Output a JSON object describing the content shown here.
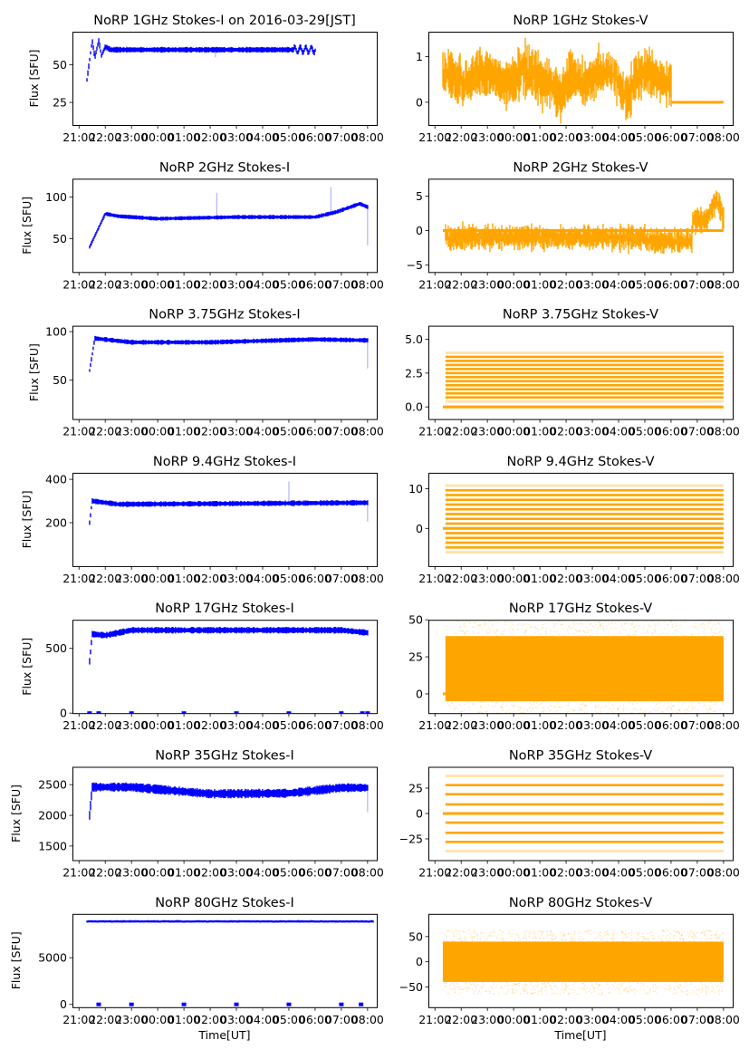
{
  "figure": {
    "colors": {
      "stokes_i": "#0000ff",
      "stokes_v": "#ffa500",
      "axes": "#000000"
    },
    "x_tick_labels": [
      "21:00",
      "22:00",
      "23:00",
      "00:00",
      "01:00",
      "02:00",
      "03:00",
      "04:00",
      "05:00",
      "06:00",
      "07:00",
      "08:00"
    ],
    "xlabel": "Time[UT]",
    "ylabel_left": "Flux [SFU]"
  },
  "chart_data": [
    {
      "type": "scatter",
      "panel": "left",
      "row": 0,
      "title": "NoRP 1GHz Stokes-I on 2016-03-29[JST]",
      "ylabel": "Flux [SFU]",
      "xlabel": "",
      "xlim": [
        -0.25,
        11.35
      ],
      "x_unit": "hours since 21:00 UT",
      "ylim": [
        10,
        72
      ],
      "yticks": [
        25,
        50
      ],
      "series": [
        {
          "name": "Stokes-I 1GHz",
          "color": "#0000ff",
          "start": 0.3,
          "end": 9.0,
          "base": 60,
          "spread": 1.5,
          "ramp": [
            [
              0.3,
              40
            ],
            [
              0.5,
              66
            ],
            [
              0.6,
              55
            ],
            [
              0.75,
              66
            ],
            [
              0.85,
              56
            ],
            [
              1.0,
              62
            ],
            [
              1.2,
              60
            ]
          ],
          "oscillation": {
            "amp": 2,
            "after": 8.2
          },
          "spikes": [
            [
              5.2,
              55
            ]
          ]
        }
      ]
    },
    {
      "type": "scatter",
      "panel": "right",
      "row": 0,
      "title": "NoRP 1GHz Stokes-V",
      "xlim": [
        -0.25,
        11.35
      ],
      "ylim": [
        -0.5,
        1.55
      ],
      "yticks": [
        0,
        1
      ],
      "series": [
        {
          "name": "Stokes-V 1GHz",
          "color": "#ffa500",
          "start": 0.3,
          "end": 9.0,
          "center": 0.55,
          "spread": 0.35,
          "peaks": [
            [
              0.4,
              1.45
            ],
            [
              4.8,
              0.9
            ],
            [
              7.3,
              1.1
            ]
          ],
          "zero_line": [
            9.0,
            11.0
          ]
        }
      ]
    },
    {
      "type": "scatter",
      "panel": "left",
      "row": 1,
      "title": "NoRP 2GHz Stokes-I",
      "ylabel": "Flux [SFU]",
      "xlim": [
        -0.25,
        11.35
      ],
      "ylim": [
        10,
        122
      ],
      "yticks": [
        50,
        100
      ],
      "series": [
        {
          "name": "Stokes-I 2GHz",
          "color": "#0000ff",
          "start": 0.4,
          "end": 11.0,
          "base": 75,
          "spread": 2,
          "ramp": [
            [
              0.4,
              40
            ],
            [
              1.0,
              80
            ],
            [
              1.5,
              77
            ],
            [
              3.0,
              74
            ],
            [
              6.0,
              76
            ],
            [
              9.0,
              76
            ],
            [
              9.8,
              82
            ],
            [
              10.7,
              92
            ],
            [
              11.0,
              88
            ]
          ],
          "spikes": [
            [
              5.25,
              105
            ],
            [
              9.6,
              112
            ],
            [
              11.0,
              42
            ]
          ]
        }
      ]
    },
    {
      "type": "scatter",
      "panel": "right",
      "row": 1,
      "title": "NoRP 2GHz Stokes-V",
      "xlim": [
        -0.25,
        11.35
      ],
      "ylim": [
        -6,
        7.5
      ],
      "yticks": [
        -5,
        0,
        5
      ],
      "series": [
        {
          "name": "Stokes-V 2GHz",
          "color": "#ffa500",
          "start": 0.4,
          "end": 11.0,
          "center": -1,
          "spread": 1.2,
          "segments": [
            [
              0.4,
              8.0,
              -1
            ],
            [
              8.0,
              9.8,
              -1.5
            ],
            [
              9.8,
              11.0,
              1.5
            ]
          ],
          "peaks": [
            [
              10.7,
              4.5
            ]
          ],
          "zero_line": [
            0.3,
            11.0
          ]
        }
      ]
    },
    {
      "type": "scatter",
      "panel": "left",
      "row": 2,
      "title": "NoRP 3.75GHz Stokes-I",
      "ylabel": "Flux [SFU]",
      "xlim": [
        -0.25,
        11.35
      ],
      "ylim": [
        10,
        106
      ],
      "yticks": [
        50,
        100
      ],
      "series": [
        {
          "name": "Stokes-I 3.75GHz",
          "color": "#0000ff",
          "start": 0.4,
          "end": 11.0,
          "base": 90,
          "spread": 2,
          "ramp": [
            [
              0.4,
              60
            ],
            [
              0.6,
              93
            ],
            [
              2.0,
              89
            ],
            [
              5.0,
              89
            ],
            [
              9.0,
              92
            ],
            [
              11.0,
              91
            ]
          ],
          "spikes": [
            [
              11.0,
              62
            ]
          ]
        }
      ]
    },
    {
      "type": "scatter",
      "panel": "right",
      "row": 2,
      "title": "NoRP 3.75GHz Stokes-V",
      "xlim": [
        -0.25,
        11.35
      ],
      "ylim": [
        -0.9,
        6.0
      ],
      "yticks_labels": [
        "0.0",
        "2.5",
        "5.0"
      ],
      "yticks": [
        0,
        2.5,
        5.0
      ],
      "series": [
        {
          "name": "Stokes-V 3.75GHz",
          "color": "#ffa500",
          "start": 0.4,
          "end": 11.0,
          "quantized_levels_from": 0.4,
          "quantized_levels_to": 4.1,
          "step": 0.3,
          "zero_line": [
            0.3,
            11.0
          ]
        }
      ]
    },
    {
      "type": "scatter",
      "panel": "left",
      "row": 3,
      "title": "NoRP 9.4GHz Stokes-I",
      "ylabel": "Flux [SFU]",
      "xlim": [
        -0.25,
        11.35
      ],
      "ylim": [
        0,
        430
      ],
      "yticks": [
        200,
        400
      ],
      "series": [
        {
          "name": "Stokes-I 9.4GHz",
          "color": "#0000ff",
          "start": 0.4,
          "end": 11.0,
          "base": 285,
          "spread": 10,
          "ramp": [
            [
              0.4,
              200
            ],
            [
              0.5,
              300
            ],
            [
              1.5,
              285
            ],
            [
              11.0,
              292
            ]
          ],
          "spikes": [
            [
              8.0,
              390
            ],
            [
              11.0,
              205
            ]
          ]
        }
      ]
    },
    {
      "type": "scatter",
      "panel": "right",
      "row": 3,
      "title": "NoRP 9.4GHz Stokes-V",
      "xlim": [
        -0.25,
        11.35
      ],
      "ylim": [
        -9.5,
        14
      ],
      "yticks": [
        0,
        10
      ],
      "series": [
        {
          "name": "Stokes-V 9.4GHz",
          "color": "#ffa500",
          "start": 0.4,
          "end": 11.0,
          "quantized_levels_from": -6,
          "quantized_levels_to": 11,
          "step": 1.2,
          "zero_line": [
            0.3,
            11.0
          ]
        }
      ]
    },
    {
      "type": "scatter",
      "panel": "left",
      "row": 4,
      "title": "NoRP 17GHz Stokes-I",
      "ylabel": "Flux [SFU]",
      "xlim": [
        -0.25,
        11.35
      ],
      "ylim": [
        0,
        720
      ],
      "yticks": [
        0,
        500
      ],
      "series": [
        {
          "name": "Stokes-I 17GHz",
          "color": "#0000ff",
          "start": 0.4,
          "end": 11.0,
          "base": 640,
          "spread": 20,
          "ramp": [
            [
              0.4,
              400
            ],
            [
              0.5,
              610
            ],
            [
              1.0,
              600
            ],
            [
              2.0,
              640
            ],
            [
              10.0,
              640
            ],
            [
              11.0,
              620
            ]
          ],
          "zero_points": [
            0.4,
            0.75,
            2.0,
            4.0,
            6.0,
            8.0,
            10.0,
            10.8,
            11.0
          ]
        }
      ]
    },
    {
      "type": "scatter",
      "panel": "right",
      "row": 4,
      "title": "NoRP 17GHz Stokes-V",
      "xlim": [
        -0.25,
        11.35
      ],
      "ylim": [
        -13,
        50
      ],
      "yticks": [
        0,
        25,
        50
      ],
      "series": [
        {
          "name": "Stokes-V 17GHz",
          "color": "#ffa500",
          "start": 0.4,
          "end": 11.0,
          "center": 17,
          "spread": 22,
          "zero_line": [
            0.3,
            11.0
          ]
        }
      ]
    },
    {
      "type": "scatter",
      "panel": "left",
      "row": 5,
      "title": "NoRP 35GHz Stokes-I",
      "ylabel": "Flux [SFU]",
      "xlim": [
        -0.25,
        11.35
      ],
      "ylim": [
        1270,
        2790
      ],
      "yticks": [
        1500,
        2000,
        2500
      ],
      "series": [
        {
          "name": "Stokes-I 35GHz",
          "color": "#0000ff",
          "start": 0.4,
          "end": 11.0,
          "base": 2400,
          "spread": 60,
          "ramp": [
            [
              0.4,
              2000
            ],
            [
              0.5,
              2460
            ],
            [
              2.0,
              2460
            ],
            [
              5.0,
              2350
            ],
            [
              8.0,
              2360
            ],
            [
              10.0,
              2450
            ],
            [
              11.0,
              2450
            ]
          ],
          "spikes": [
            [
              11.0,
              2050
            ]
          ]
        }
      ]
    },
    {
      "type": "scatter",
      "panel": "right",
      "row": 5,
      "title": "NoRP 35GHz Stokes-V",
      "xlim": [
        -0.25,
        11.35
      ],
      "ylim": [
        -46,
        46
      ],
      "yticks": [
        -25,
        0,
        25
      ],
      "series": [
        {
          "name": "Stokes-V 35GHz",
          "color": "#ffa500",
          "start": 0.4,
          "end": 11.0,
          "levels": [
            -37,
            -28,
            -19,
            -9,
            0,
            9,
            19,
            28,
            37
          ],
          "zero_line": [
            0.3,
            11.0
          ]
        }
      ]
    },
    {
      "type": "scatter",
      "panel": "left",
      "row": 6,
      "title": "NoRP 80GHz Stokes-I",
      "ylabel": "Flux [SFU]",
      "xlabel": "Time[UT]",
      "xlim": [
        -0.25,
        11.35
      ],
      "ylim": [
        -300,
        9700
      ],
      "yticks": [
        0,
        5000
      ],
      "series": [
        {
          "name": "Stokes-I 80GHz",
          "color": "#0000ff",
          "start": 0.3,
          "end": 11.2,
          "base": 8900,
          "spread": 100,
          "zero_points": [
            0.75,
            2.0,
            4.0,
            6.0,
            8.0,
            10.0,
            10.75
          ]
        }
      ]
    },
    {
      "type": "scatter",
      "panel": "right",
      "row": 6,
      "title": "NoRP 80GHz Stokes-V",
      "xlabel": "Time[UT]",
      "xlim": [
        -0.25,
        11.35
      ],
      "ylim": [
        -90,
        95
      ],
      "yticks": [
        -50,
        0,
        50
      ],
      "series": [
        {
          "name": "Stokes-V 80GHz",
          "color": "#ffa500",
          "start": 0.3,
          "end": 11.0,
          "center": 0,
          "spread": 40
        }
      ]
    }
  ]
}
